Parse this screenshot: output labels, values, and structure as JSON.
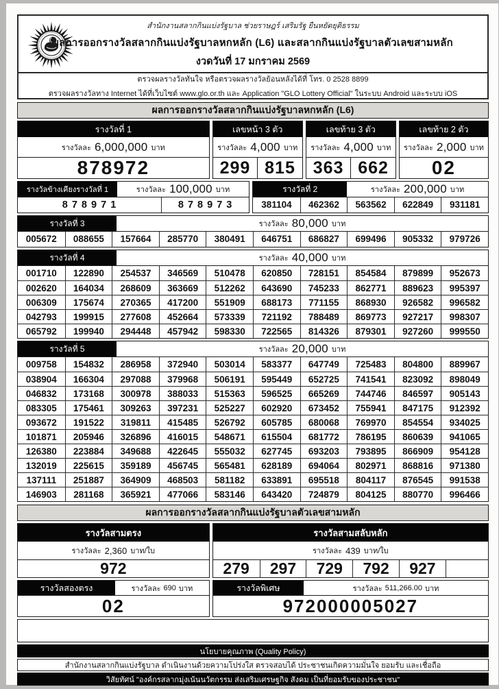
{
  "colors": {
    "page_bg": "#b9b8b6",
    "paper": "#fcfcfb",
    "bar_black": "#060606",
    "bar_gray": "#d8d7d4",
    "border": "#1c1c1c"
  },
  "labels": {
    "each": "รางวัลละ",
    "baht": "บาท"
  },
  "header": {
    "logo": "glo-star-seal",
    "motto": "สำนักงานสลากกินแบ่งรัฐบาล  ช่วยราษฎร์  เสริมรัฐ  ยืนหยัดยุติธรรม",
    "title": "ผลการออกรางวัลสลากกินแบ่งรัฐบาลหกหลัก (L6) และสลากกินแบ่งรัฐบาลตัวเลขสามหลัก",
    "draw_date": "งวดวันที่ 17 มกราคม 2569"
  },
  "contact": {
    "line1": "ตรวจผลรางวัลทันใจ  หรือตรวจผลรางวัลย้อนหลังได้ที่  โทร. 0 2528 8899",
    "line2": "ตรวจผลรางวัลทาง Internet ได้ที่เว็บไซต์  www.glo.or.th  และ Application \"GLO Lottery Official\" ในระบบ Android และระบบ iOS"
  },
  "l6": {
    "section_title": "ผลการออกรางวัลสลากกินแบ่งรัฐบาลหกหลัก (L6)",
    "first": {
      "label": "รางวัลที่ 1",
      "amount": "6,000,000",
      "number": "878972"
    },
    "front3": {
      "label": "เลขหน้า 3 ตัว",
      "amount": "4,000",
      "numbers": [
        "299",
        "815"
      ]
    },
    "last3": {
      "label": "เลขท้าย 3 ตัว",
      "amount": "4,000",
      "numbers": [
        "363",
        "662"
      ]
    },
    "last2": {
      "label": "เลขท้าย 2 ตัว",
      "amount": "2,000",
      "number": "02"
    },
    "adjacent": {
      "label": "รางวัลข้างเคียงรางวัลที่ 1",
      "amount": "100,000",
      "numbers": [
        "8 7 8 9 7 1",
        "8 7 8 9 7 3"
      ]
    },
    "second": {
      "label": "รางวัลที่ 2",
      "amount": "200,000",
      "numbers": [
        "381104",
        "462362",
        "563562",
        "622849",
        "931181"
      ]
    },
    "third": {
      "label": "รางวัลที่ 3",
      "amount": "80,000",
      "numbers": [
        "005672",
        "088655",
        "157664",
        "285770",
        "380491",
        "646751",
        "686827",
        "699496",
        "905332",
        "979726"
      ]
    },
    "fourth": {
      "label": "รางวัลที่ 4",
      "amount": "40,000",
      "rows": [
        [
          "001710",
          "122890",
          "254537",
          "346569",
          "510478",
          "620850",
          "728151",
          "854584",
          "879899",
          "952673"
        ],
        [
          "002620",
          "164034",
          "268609",
          "363669",
          "512262",
          "643690",
          "745233",
          "862771",
          "889623",
          "995397"
        ],
        [
          "006309",
          "175674",
          "270365",
          "417200",
          "551909",
          "688173",
          "771155",
          "868930",
          "926582",
          "996582"
        ],
        [
          "042793",
          "199915",
          "277608",
          "452664",
          "573339",
          "721192",
          "788489",
          "869773",
          "927217",
          "998307"
        ],
        [
          "065792",
          "199940",
          "294448",
          "457942",
          "598330",
          "722565",
          "814326",
          "879301",
          "927260",
          "999550"
        ]
      ]
    },
    "fifth": {
      "label": "รางวัลที่ 5",
      "amount": "20,000",
      "rows": [
        [
          "009758",
          "154832",
          "286958",
          "372940",
          "503014",
          "583377",
          "647749",
          "725483",
          "804800",
          "889967"
        ],
        [
          "038904",
          "166304",
          "297088",
          "379968",
          "506191",
          "595449",
          "652725",
          "741541",
          "823092",
          "898049"
        ],
        [
          "046832",
          "173168",
          "300978",
          "388033",
          "515363",
          "596525",
          "665269",
          "744746",
          "846597",
          "905143"
        ],
        [
          "083305",
          "175461",
          "309263",
          "397231",
          "525227",
          "602920",
          "673452",
          "755941",
          "847175",
          "912392"
        ],
        [
          "093672",
          "191522",
          "319811",
          "415485",
          "526792",
          "605785",
          "680068",
          "769970",
          "854554",
          "934025"
        ],
        [
          "101871",
          "205946",
          "326896",
          "416015",
          "548671",
          "615504",
          "681772",
          "786195",
          "860639",
          "941065"
        ],
        [
          "126380",
          "223884",
          "349688",
          "422645",
          "555032",
          "627745",
          "693203",
          "793895",
          "866909",
          "954128"
        ],
        [
          "132019",
          "225615",
          "359189",
          "456745",
          "565481",
          "628189",
          "694064",
          "802971",
          "868816",
          "971380"
        ],
        [
          "137111",
          "251887",
          "364909",
          "468503",
          "581182",
          "633891",
          "695518",
          "804117",
          "876545",
          "991538"
        ],
        [
          "146903",
          "281168",
          "365921",
          "477066",
          "583146",
          "643420",
          "724879",
          "804125",
          "880770",
          "996466"
        ]
      ]
    }
  },
  "n3": {
    "section_title": "ผลการออกรางวัลสลากกินแบ่งรัฐบาลตัวเลขสามหลัก",
    "straight3": {
      "label": "รางวัลสามตรง",
      "amount": "2,360",
      "unit": "บาท/ใบ",
      "number": "972"
    },
    "perm3": {
      "label": "รางวัลสามสลับหลัก",
      "amount": "439",
      "unit": "บาท/ใบ",
      "numbers": [
        "279",
        "297",
        "729",
        "792",
        "927"
      ]
    },
    "straight2": {
      "label": "รางวัลสองตรง",
      "amount": "690",
      "unit": "บาท",
      "number": "02"
    },
    "special": {
      "label": "รางวัลพิเศษ",
      "amount": "511,266.00",
      "unit": "บาท",
      "number": "972000005027"
    }
  },
  "footer": {
    "quality_title": "นโยบายคุณภาพ (Quality Policy)",
    "quality_text": "สำนักงานสลากกินแบ่งรัฐบาล ดำเนินงานด้วยความโปร่งใส ตรวจสอบได้ ประชาชนเกิดความมั่นใจ ยอมรับ และเชื่อถือ",
    "vision_text": "วิสัยทัศน์ \"องค์กรสลากมุ่งเน้นนวัตกรรม ส่งเสริมเศรษฐกิจ สังคม เป็นที่ยอมรับของประชาชน\""
  }
}
